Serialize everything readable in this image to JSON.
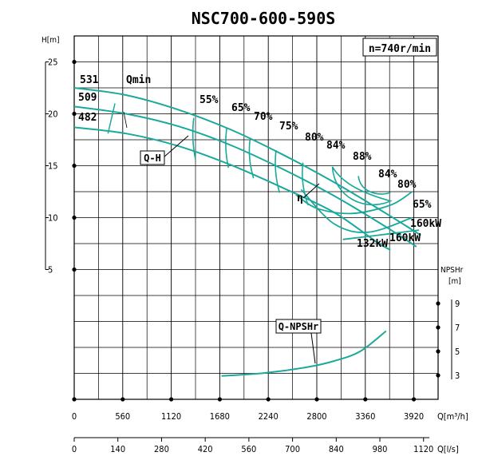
{
  "chart_data": {
    "type": "line",
    "title": "NSC700-600-590S",
    "speed_label": "n=740r/min",
    "ylabel_head": "H[m]",
    "ylabel_npsh": "NPSHr",
    "ylabel_npsh_unit": "[m]",
    "xlabel_m3h": "Q[m³/h]",
    "xlabel_ls": "Q[l/s]",
    "x_m3h_ticks": [
      "0",
      "560",
      "1120",
      "1680",
      "2240",
      "2800",
      "3360",
      "3920"
    ],
    "x_ls_ticks": [
      "0",
      "140",
      "280",
      "420",
      "560",
      "700",
      "840",
      "980",
      "1120"
    ],
    "y_head_ticks": [
      "25",
      "20",
      "15",
      "10",
      "5"
    ],
    "y_npsh_ticks": [
      "9",
      "7",
      "5",
      "3"
    ],
    "xlim_m3h": [
      0,
      4200
    ],
    "ylim_head": [
      -7.5,
      27.5
    ],
    "grid": true,
    "impeller_labels": [
      "531",
      "509",
      "482"
    ],
    "qmin_label": "Qmin",
    "qh_label": "Q-H",
    "eta_label": "η",
    "npsh_label": "Q-NPSHr",
    "efficiency_labels": [
      "55%",
      "65%",
      "70%",
      "75%",
      "80%",
      "84%",
      "88%",
      "84%",
      "80%",
      "65%"
    ],
    "power_labels": [
      "160kW",
      "160kW",
      "132kW"
    ],
    "series": [
      {
        "name": "531",
        "x": [
          0,
          600,
          1200,
          1800,
          2400,
          3000,
          3600,
          4000
        ],
        "y": [
          22.5,
          21.8,
          20.4,
          18.5,
          16.1,
          13.4,
          10.4,
          8.3
        ]
      },
      {
        "name": "509",
        "x": [
          0,
          600,
          1200,
          1800,
          2400,
          3000,
          3600,
          3950
        ],
        "y": [
          20.7,
          20.0,
          18.8,
          17.0,
          14.7,
          12.1,
          9.1,
          7.2
        ]
      },
      {
        "name": "482",
        "x": [
          0,
          600,
          1200,
          1800,
          2400,
          3000,
          3500,
          3650
        ],
        "y": [
          18.7,
          18.1,
          16.9,
          15.1,
          12.9,
          10.5,
          7.6,
          6.9
        ]
      }
    ],
    "npsh_curve": {
      "x": [
        1700,
        2200,
        2700,
        3000,
        3300,
        3600
      ],
      "y": [
        2.95,
        3.2,
        3.7,
        4.2,
        5.0,
        6.7
      ]
    }
  }
}
